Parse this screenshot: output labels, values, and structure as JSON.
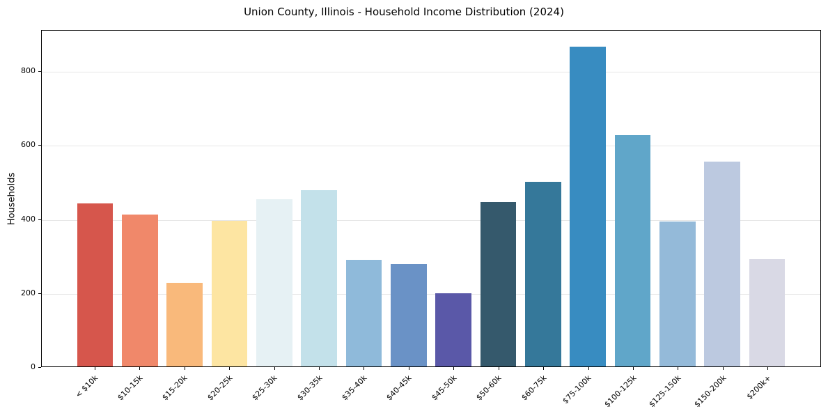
{
  "figure": {
    "title": "Union County, Illinois - Household Income Distribution (2024)"
  },
  "chart_data": {
    "type": "bar",
    "title": "Union County, Illinois - Household Income Distribution (2024)",
    "xlabel": "",
    "ylabel": "Households",
    "categories": [
      "< $10k",
      "$10-15k",
      "$15-20k",
      "$20-25k",
      "$25-30k",
      "$30-35k",
      "$35-40k",
      "$40-45k",
      "$45-50k",
      "$50-60k",
      "$60-75k",
      "$75-100k",
      "$100-125k",
      "$125-150k",
      "$150-200k",
      "$200k+"
    ],
    "values": [
      442,
      412,
      227,
      395,
      453,
      479,
      289,
      278,
      199,
      446,
      500,
      868,
      627,
      393,
      555,
      292
    ],
    "bar_colors": [
      "#d6564c",
      "#f0886a",
      "#f9b97b",
      "#fde5a2",
      "#e6f1f4",
      "#c3e1ea",
      "#8fbada",
      "#6a92c6",
      "#5a58a8",
      "#35596c",
      "#35789a",
      "#388cc1",
      "#60a6c9",
      "#94bad9",
      "#bcc9e0",
      "#d9d9e5"
    ],
    "yticks": [
      0,
      200,
      400,
      600,
      800
    ],
    "ylim": [
      0,
      911
    ],
    "grid": "horizontal-only",
    "grid_color": "#e6e6e6",
    "spine_color": "#000000",
    "background_color": "#ffffff",
    "legend": "none",
    "xtick_rotation": 45
  }
}
